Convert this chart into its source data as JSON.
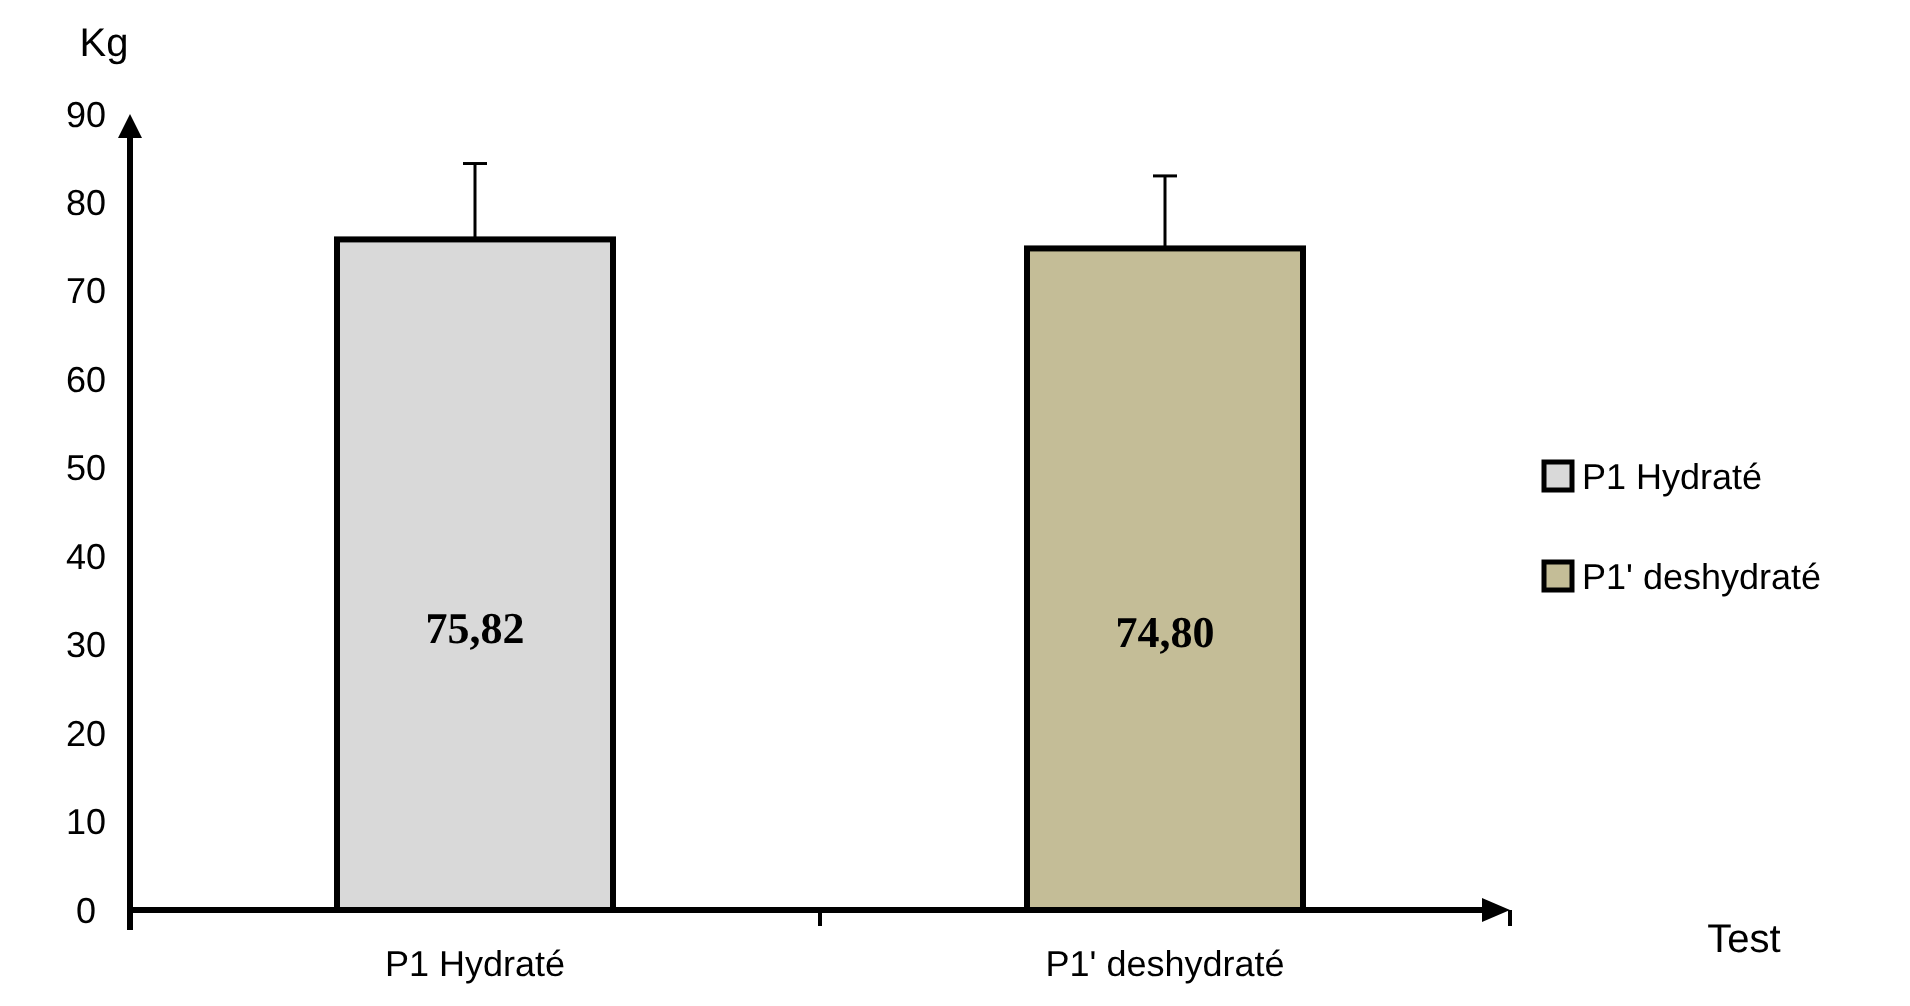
{
  "chart_data": {
    "type": "bar",
    "ylabel": "Kg",
    "annotations": [
      "Test"
    ],
    "categories": [
      "P1 Hydraté",
      "P1' deshydraté"
    ],
    "series": [
      {
        "name": "P1 Hydraté",
        "color": "#d9d9d9",
        "values": [
          75.82,
          null
        ],
        "errors": [
          [
            75.82,
            84.4
          ],
          null
        ],
        "value_labels": [
          "75,82",
          null
        ]
      },
      {
        "name": "P1' deshydraté",
        "color": "#c4bd97",
        "values": [
          null,
          74.8
        ],
        "errors": [
          null,
          [
            74.8,
            83.0
          ]
        ],
        "value_labels": [
          null,
          "74,80"
        ]
      }
    ],
    "ylim": [
      0,
      90
    ],
    "yticks": [
      0,
      10,
      20,
      30,
      40,
      50,
      60,
      70,
      80,
      90
    ],
    "grid": false,
    "legend": "right"
  }
}
